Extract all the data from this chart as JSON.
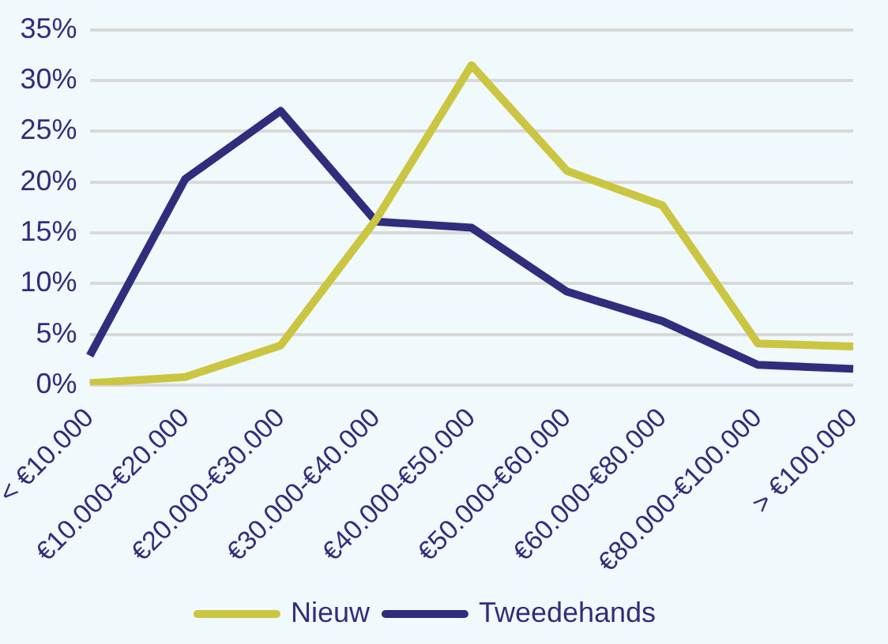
{
  "chart_data": {
    "type": "line",
    "categories": [
      "< €10.000",
      "€10.000-€20.000",
      "€20.000-€30.000",
      "€30.000-€40.000",
      "€40.000-€50.000",
      "€50.000-€60.000",
      "€60.000-€80.000",
      "€80.000-€100.000",
      "> €100.000"
    ],
    "series": [
      {
        "name": "Nieuw",
        "color": "#cbc641",
        "values": [
          0.2,
          0.8,
          3.9,
          16.3,
          31.5,
          21.1,
          17.7,
          4.1,
          3.8
        ]
      },
      {
        "name": "Tweedehands",
        "color": "#2e2e7c",
        "values": [
          2.9,
          20.3,
          27,
          16.1,
          15.5,
          9.2,
          6.3,
          2,
          1.6
        ]
      }
    ],
    "ylim": [
      0,
      35
    ],
    "yticks": [
      {
        "value": 0,
        "label": "0%"
      },
      {
        "value": 5,
        "label": "5%"
      },
      {
        "value": 10,
        "label": "10%"
      },
      {
        "value": 15,
        "label": "15%"
      },
      {
        "value": 20,
        "label": "20%"
      },
      {
        "value": 25,
        "label": "25%"
      },
      {
        "value": 30,
        "label": "30%"
      },
      {
        "value": 35,
        "label": "35%"
      }
    ],
    "grid": "y",
    "legend": "bottom",
    "marker": "none",
    "line_style": "solid"
  }
}
